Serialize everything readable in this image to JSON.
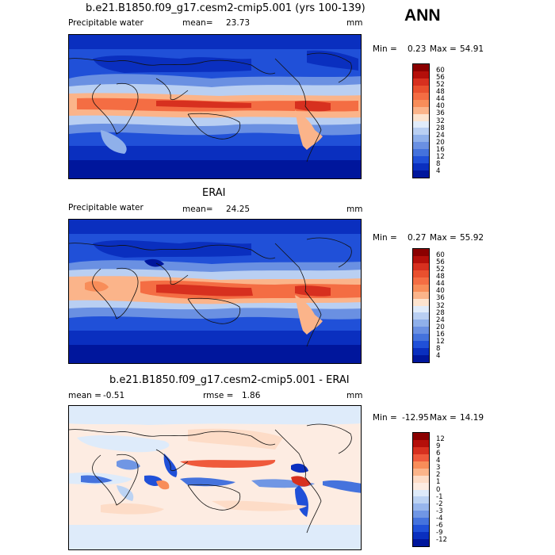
{
  "season": "ANN",
  "panels": [
    {
      "title": "b.e21.B1850.f09_g17.cesm2-cmip5.001 (yrs 100-139)",
      "left_label": "Precipitable water",
      "center_label": "mean=",
      "center_value": "23.73",
      "units": "mm",
      "min_label": "Min =",
      "min_value": "0.23",
      "max_label": "Max =",
      "max_value": "54.91"
    },
    {
      "title": "ERAI",
      "left_label": "Precipitable water",
      "center_label": "mean=",
      "center_value": "24.25",
      "units": "mm",
      "min_label": "Min =",
      "min_value": "0.27",
      "max_label": "Max =",
      "max_value": "55.92"
    },
    {
      "title": "b.e21.B1850.f09_g17.cesm2-cmip5.001 - ERAI",
      "left_label": "mean =",
      "left_value": "-0.51",
      "center_label": "rmse =",
      "center_value": "1.86",
      "units": "mm",
      "min_label": "Min =",
      "min_value": "-12.95",
      "max_label": "Max =",
      "max_value": "14.19"
    }
  ],
  "colorbars": {
    "abs": {
      "levels": [
        "60",
        "56",
        "52",
        "48",
        "44",
        "40",
        "36",
        "32",
        "28",
        "24",
        "20",
        "16",
        "12",
        "8",
        "4"
      ],
      "colors": [
        "#8b0000",
        "#b40f0a",
        "#d7301f",
        "#e9502e",
        "#f46d43",
        "#f88d59",
        "#fbb48a",
        "#fde4cf",
        "#e1ecfa",
        "#b9cff2",
        "#8fb0ea",
        "#6a90e2",
        "#4472dc",
        "#2050d8",
        "#0a2fbf",
        "#00169c"
      ]
    },
    "diff": {
      "levels": [
        "12",
        "9",
        "6",
        "4",
        "3",
        "2",
        "1",
        "0",
        "-1",
        "-2",
        "-3",
        "-4",
        "-6",
        "-9",
        "-12"
      ],
      "colors": [
        "#8b0000",
        "#b40f0a",
        "#d7301f",
        "#ef5a3c",
        "#f88d59",
        "#fbb48a",
        "#fddcc7",
        "#fdece2",
        "#deebfa",
        "#bcd3f3",
        "#97b6ec",
        "#7096e4",
        "#4573dd",
        "#2050d8",
        "#0a2fbf",
        "#00169c"
      ]
    }
  }
}
